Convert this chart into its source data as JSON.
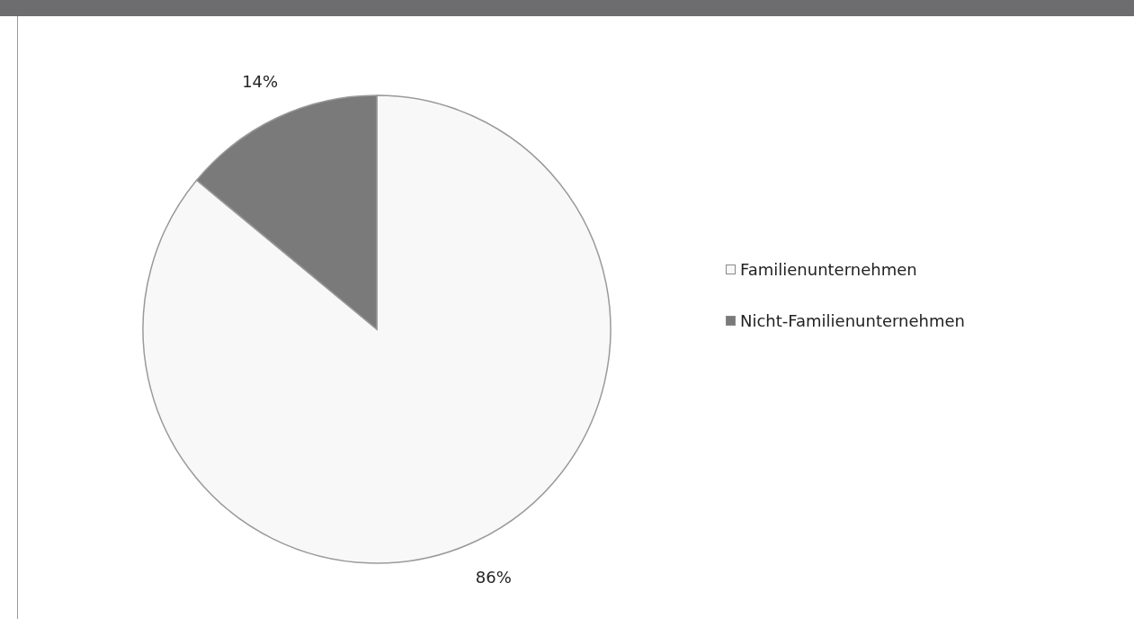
{
  "chart_data": {
    "type": "pie",
    "categories": [
      "Familienunternehmen",
      "Nicht-Familienunternehmen"
    ],
    "values": [
      86,
      14
    ],
    "colors": [
      "#f8f8f8",
      "#7a7a7a"
    ],
    "value_labels": [
      "86%",
      "14%"
    ],
    "legend": "right"
  }
}
